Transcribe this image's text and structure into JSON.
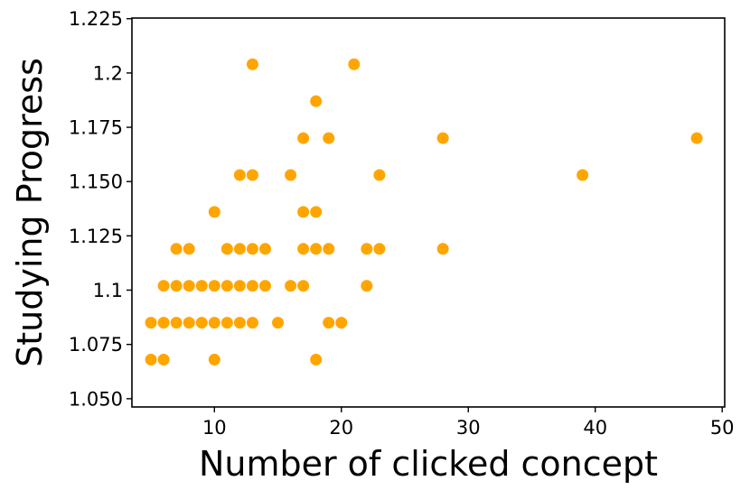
{
  "chart_data": {
    "type": "scatter",
    "title": "",
    "xlabel": "Number of clicked concept",
    "ylabel": "Studying Progress",
    "xlim": [
      3.5,
      50.2
    ],
    "ylim": [
      1.0462,
      1.2253
    ],
    "x_ticks": [
      10,
      20,
      30,
      40,
      50
    ],
    "x_tick_labels": [
      "10",
      "20",
      "30",
      "40",
      "50"
    ],
    "y_ticks": [
      1.05,
      1.075,
      1.1,
      1.125,
      1.15,
      1.175,
      1.2,
      1.225
    ],
    "y_tick_labels": [
      "1.050",
      "1.075",
      "1.1",
      "1.125",
      "1.150",
      "1.175",
      "1.2",
      "1.225"
    ],
    "grid": false,
    "legend": "none",
    "marker_color": "#FFA500",
    "series": [
      {
        "points": [
          [
            5,
            1.068
          ],
          [
            6,
            1.068
          ],
          [
            10,
            1.068
          ],
          [
            18,
            1.068
          ],
          [
            5,
            1.085
          ],
          [
            6,
            1.085
          ],
          [
            7,
            1.085
          ],
          [
            8,
            1.085
          ],
          [
            9,
            1.085
          ],
          [
            10,
            1.085
          ],
          [
            11,
            1.085
          ],
          [
            12,
            1.085
          ],
          [
            13,
            1.085
          ],
          [
            15,
            1.085
          ],
          [
            19,
            1.085
          ],
          [
            20,
            1.085
          ],
          [
            6,
            1.102
          ],
          [
            7,
            1.102
          ],
          [
            8,
            1.102
          ],
          [
            9,
            1.102
          ],
          [
            10,
            1.102
          ],
          [
            11,
            1.102
          ],
          [
            12,
            1.102
          ],
          [
            13,
            1.102
          ],
          [
            14,
            1.102
          ],
          [
            16,
            1.102
          ],
          [
            17,
            1.102
          ],
          [
            22,
            1.102
          ],
          [
            7,
            1.119
          ],
          [
            8,
            1.119
          ],
          [
            11,
            1.119
          ],
          [
            12,
            1.119
          ],
          [
            13,
            1.119
          ],
          [
            14,
            1.119
          ],
          [
            17,
            1.119
          ],
          [
            18,
            1.119
          ],
          [
            19,
            1.119
          ],
          [
            22,
            1.119
          ],
          [
            23,
            1.119
          ],
          [
            28,
            1.119
          ],
          [
            10,
            1.136
          ],
          [
            17,
            1.136
          ],
          [
            18,
            1.136
          ],
          [
            12,
            1.153
          ],
          [
            13,
            1.153
          ],
          [
            16,
            1.153
          ],
          [
            23,
            1.153
          ],
          [
            39,
            1.153
          ],
          [
            17,
            1.17
          ],
          [
            19,
            1.17
          ],
          [
            28,
            1.17
          ],
          [
            48,
            1.17
          ],
          [
            18,
            1.187
          ],
          [
            13,
            1.204
          ],
          [
            21,
            1.204
          ]
        ]
      }
    ]
  }
}
